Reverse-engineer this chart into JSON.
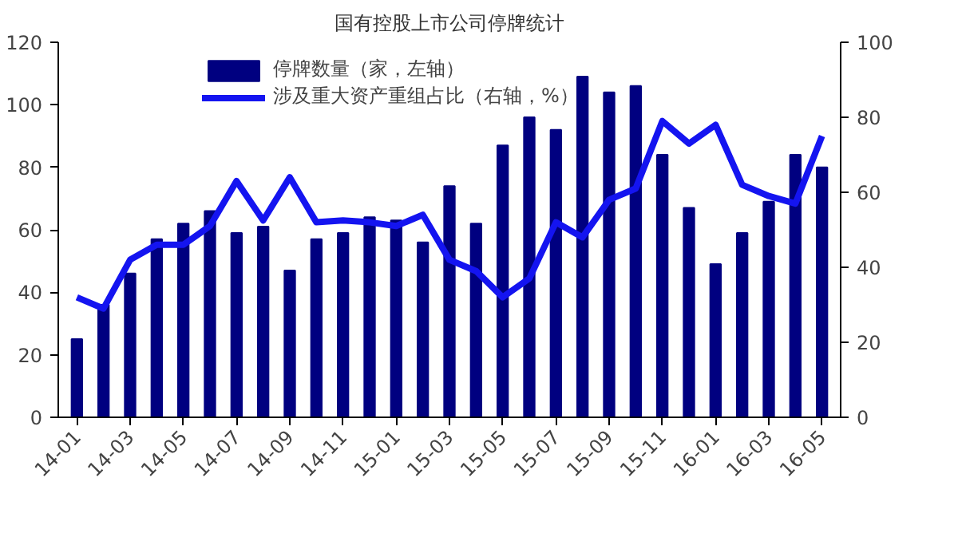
{
  "chart_data": {
    "type": "bar",
    "title": "国有控股上市公司停牌统计",
    "categories": [
      "14-01",
      null,
      "14-03",
      null,
      "14-05",
      null,
      "14-07",
      null,
      "14-09",
      null,
      "14-11",
      null,
      "15-01",
      null,
      "15-03",
      null,
      "15-05",
      null,
      "15-07",
      null,
      "15-09",
      null,
      "15-11",
      null,
      "16-01",
      null,
      "16-03",
      null,
      "16-05"
    ],
    "series": [
      {
        "name": "停牌数量（家，左轴）",
        "color": "#000080",
        "values": [
          25,
          36,
          46,
          57,
          62,
          66,
          59,
          61,
          47,
          57,
          59,
          64,
          63,
          56,
          74,
          62,
          87,
          96,
          92,
          109,
          104,
          106,
          84,
          67,
          49,
          59,
          69,
          84,
          80
        ]
      },
      {
        "name": "涉及重大资产重组占比（右轴，%）",
        "type": "line",
        "axis": "y2",
        "color": "#1414f0",
        "values": [
          32,
          29,
          42,
          46,
          46,
          51,
          63,
          52.5,
          64,
          52,
          52.5,
          52,
          51,
          54,
          42,
          39,
          32,
          37,
          52,
          48,
          58,
          61,
          79,
          73,
          78,
          62,
          59,
          57,
          75
        ]
      }
    ],
    "ylim": [
      0,
      120
    ],
    "yticks": [
      0,
      20,
      40,
      60,
      80,
      100,
      120
    ],
    "y2lim": [
      0,
      100
    ],
    "y2ticks": [
      0,
      20,
      40,
      60,
      80,
      100
    ],
    "grid": false,
    "legend": "top"
  }
}
